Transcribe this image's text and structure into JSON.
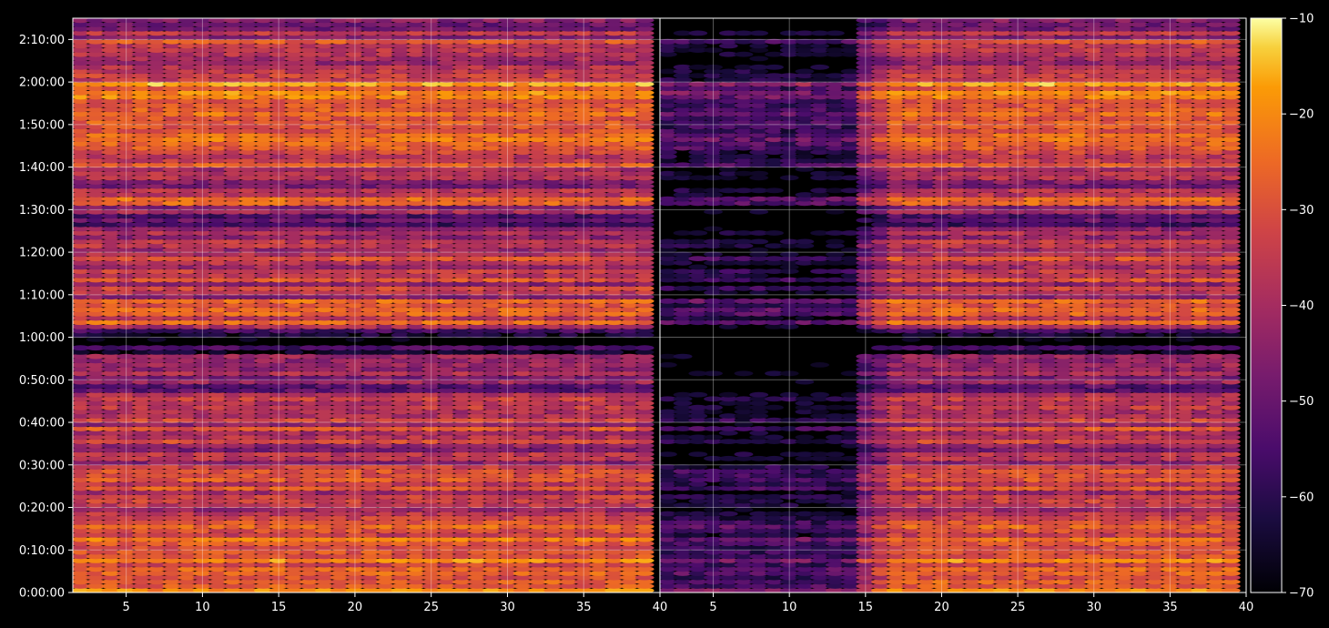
{
  "chart_data": {
    "type": "heatmap",
    "description_visible": false,
    "title": "",
    "xlabel": "",
    "ylabel": "",
    "background": "#000000",
    "grid": true,
    "colormap": "inferno",
    "panels": [
      {
        "id": "left",
        "x_range": [
          1.5,
          40
        ],
        "x_tick_values": [
          5,
          10,
          15,
          20,
          25,
          30,
          35,
          40
        ],
        "x_tick_labels": [
          "5",
          "10",
          "15",
          "20",
          "25",
          "30",
          "35",
          "40"
        ]
      },
      {
        "id": "right",
        "x_range": [
          1.5,
          40
        ],
        "x_tick_values": [
          5,
          10,
          15,
          20,
          25,
          30,
          35,
          40
        ],
        "x_tick_labels": [
          "5",
          "10",
          "15",
          "20",
          "25",
          "30",
          "35",
          "40"
        ],
        "quiet_region_x_range": [
          1.5,
          14
        ],
        "quiet_region_attenuation": 25
      }
    ],
    "y_axis": {
      "unit": "seconds",
      "range": [
        0,
        8100
      ],
      "tick_values": [
        0,
        600,
        1200,
        1800,
        2400,
        3000,
        3600,
        4200,
        4800,
        5400,
        6000,
        6600,
        7200,
        7800
      ],
      "tick_labels": [
        "0:00:00",
        "0:10:00",
        "0:20:00",
        "0:30:00",
        "0:40:00",
        "0:50:00",
        "1:00:00",
        "1:10:00",
        "1:20:00",
        "1:30:00",
        "1:40:00",
        "1:50:00",
        "2:00:00",
        "2:10:00"
      ]
    },
    "colorbar": {
      "range": [
        -70,
        -10
      ],
      "tick_values": [
        -10,
        -20,
        -30,
        -40,
        -50,
        -60,
        -70
      ],
      "tick_labels": [
        "−10",
        "−20",
        "−30",
        "−40",
        "−50",
        "−60",
        "−70"
      ]
    },
    "value_bands": [
      {
        "t_start": 0,
        "t_end": 1100,
        "level": -28
      },
      {
        "t_start": 1100,
        "t_end": 1700,
        "level": -36
      },
      {
        "t_start": 1700,
        "t_end": 2000,
        "level": -42
      },
      {
        "t_start": 2000,
        "t_end": 2800,
        "level": -36
      },
      {
        "t_start": 2800,
        "t_end": 3350,
        "level": -46
      },
      {
        "t_start": 3350,
        "t_end": 3700,
        "level": -62
      },
      {
        "t_start": 3700,
        "t_end": 4100,
        "level": -32
      },
      {
        "t_start": 4100,
        "t_end": 4450,
        "level": -38
      },
      {
        "t_start": 4450,
        "t_end": 4800,
        "level": -33
      },
      {
        "t_start": 4800,
        "t_end": 5100,
        "level": -44
      },
      {
        "t_start": 5100,
        "t_end": 5300,
        "level": -52
      },
      {
        "t_start": 5300,
        "t_end": 5450,
        "level": -42
      },
      {
        "t_start": 5450,
        "t_end": 5700,
        "level": -34
      },
      {
        "t_start": 5700,
        "t_end": 6000,
        "level": -44
      },
      {
        "t_start": 6000,
        "t_end": 6500,
        "level": -30
      },
      {
        "t_start": 6500,
        "t_end": 7200,
        "level": -24
      },
      {
        "t_start": 7200,
        "t_end": 7500,
        "level": -40
      },
      {
        "t_start": 7500,
        "t_end": 7800,
        "level": -34
      },
      {
        "t_start": 7800,
        "t_end": 8100,
        "level": -44
      }
    ]
  }
}
